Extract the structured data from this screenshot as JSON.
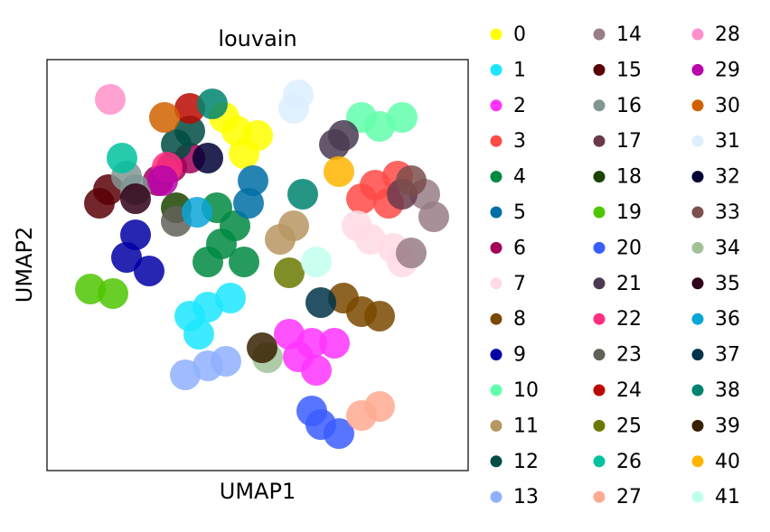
{
  "chart_data": {
    "type": "scatter",
    "title": "louvain",
    "x_label": "UMAP1",
    "y_label": "UMAP2",
    "xlim": [
      0,
      466
    ],
    "ylim": [
      0,
      455
    ],
    "series": [
      {
        "name": "0",
        "color": "#FFFF00",
        "x": [
          210,
          218,
          196,
          233
        ],
        "y": [
          376,
          351,
          391,
          371
        ]
      },
      {
        "name": "1",
        "color": "#1CE6FF",
        "x": [
          178,
          158,
          203,
          168
        ],
        "y": [
          181,
          171,
          191,
          151
        ]
      },
      {
        "name": "2",
        "color": "#FF34FF",
        "x": [
          293,
          278,
          318,
          298,
          268
        ],
        "y": [
          141,
          126,
          141,
          111,
          151
        ]
      },
      {
        "name": "3",
        "color": "#FF4A46",
        "x": [
          363,
          388,
          348,
          378
        ],
        "y": [
          316,
          326,
          301,
          296
        ]
      },
      {
        "name": "4",
        "color": "#008941",
        "x": [
          193,
          208,
          178,
          218,
          188
        ],
        "y": [
          251,
          271,
          231,
          231,
          291
        ]
      },
      {
        "name": "5",
        "color": "#006FA6",
        "x": [
          228,
          223
        ],
        "y": [
          321,
          296
        ]
      },
      {
        "name": "6",
        "color": "#A30059",
        "x": [
          138,
          158,
          123
        ],
        "y": [
          336,
          346,
          321
        ]
      },
      {
        "name": "7",
        "color": "#FFDBE5",
        "x": [
          358,
          383,
          343,
          393
        ],
        "y": [
          256,
          246,
          271,
          231
        ]
      },
      {
        "name": "8",
        "color": "#7A4900",
        "x": [
          348,
          368,
          328
        ],
        "y": [
          176,
          171,
          191
        ]
      },
      {
        "name": "9",
        "color": "#0000A6",
        "x": [
          98,
          88,
          113
        ],
        "y": [
          261,
          236,
          221
        ]
      },
      {
        "name": "10",
        "color": "#63FFAC",
        "x": [
          368,
          393,
          348
        ],
        "y": [
          381,
          391,
          391
        ]
      },
      {
        "name": "11",
        "color": "#B79762",
        "x": [
          273,
          258
        ],
        "y": [
          271,
          256
        ]
      },
      {
        "name": "12",
        "color": "#004D43",
        "x": [
          158,
          143
        ],
        "y": [
          376,
          361
        ]
      },
      {
        "name": "13",
        "color": "#8FB0FF",
        "x": [
          178,
          153,
          198
        ],
        "y": [
          116,
          106,
          121
        ]
      },
      {
        "name": "14",
        "color": "#997D87",
        "x": [
          418,
          428,
          403
        ],
        "y": [
          306,
          281,
          241
        ]
      },
      {
        "name": "15",
        "color": "#5A0007",
        "x": [
          68,
          58
        ],
        "y": [
          311,
          296
        ]
      },
      {
        "name": "16",
        "color": "#809693",
        "x": [
          98,
          88
        ],
        "y": [
          311,
          326
        ]
      },
      {
        "name": "17",
        "color": "#6A3A4C",
        "x": [
          393
        ],
        "y": [
          306
        ]
      },
      {
        "name": "18",
        "color": "#1B4400",
        "x": [
          143
        ],
        "y": [
          291
        ]
      },
      {
        "name": "19",
        "color": "#4FC601",
        "x": [
          48,
          73
        ],
        "y": [
          201,
          196
        ]
      },
      {
        "name": "20",
        "color": "#3B5DFF",
        "x": [
          303,
          293,
          323
        ],
        "y": [
          51,
          66,
          41
        ]
      },
      {
        "name": "21",
        "color": "#4A3B53",
        "x": [
          328,
          318
        ],
        "y": [
          371,
          361
        ]
      },
      {
        "name": "22",
        "color": "#FF2F80",
        "x": [
          133
        ],
        "y": [
          336
        ]
      },
      {
        "name": "23",
        "color": "#61615A",
        "x": [
          143
        ],
        "y": [
          276
        ]
      },
      {
        "name": "24",
        "color": "#BA0900",
        "x": [
          158
        ],
        "y": [
          401
        ]
      },
      {
        "name": "25",
        "color": "#6B7900",
        "x": [
          268
        ],
        "y": [
          219
        ]
      },
      {
        "name": "26",
        "color": "#00C2A0",
        "x": [
          83
        ],
        "y": [
          346
        ]
      },
      {
        "name": "27",
        "color": "#FFAA92",
        "x": [
          348,
          368
        ],
        "y": [
          61,
          71
        ]
      },
      {
        "name": "28",
        "color": "#FF90C9",
        "x": [
          70
        ],
        "y": [
          411
        ]
      },
      {
        "name": "29",
        "color": "#B903AA",
        "x": [
          128
        ],
        "y": [
          321
        ]
      },
      {
        "name": "30",
        "color": "#D16100",
        "x": [
          130
        ],
        "y": [
          391
        ]
      },
      {
        "name": "31",
        "color": "#DDEFFF",
        "x": [
          278,
          273
        ],
        "y": [
          416,
          401
        ]
      },
      {
        "name": "32",
        "color": "#000035",
        "x": [
          178
        ],
        "y": [
          346
        ]
      },
      {
        "name": "33",
        "color": "#7B4F4B",
        "x": [
          403
        ],
        "y": [
          321
        ]
      },
      {
        "name": "34",
        "color": "#A1C299",
        "x": [
          244
        ],
        "y": [
          125
        ]
      },
      {
        "name": "35",
        "color": "#300018",
        "x": [
          98
        ],
        "y": [
          301
        ]
      },
      {
        "name": "36",
        "color": "#0AA6D8",
        "x": [
          166
        ],
        "y": [
          286
        ]
      },
      {
        "name": "37",
        "color": "#013349",
        "x": [
          303
        ],
        "y": [
          186
        ]
      },
      {
        "name": "38",
        "color": "#00846F",
        "x": [
          183,
          283
        ],
        "y": [
          406,
          306
        ]
      },
      {
        "name": "39",
        "color": "#372101",
        "x": [
          238
        ],
        "y": [
          136
        ]
      },
      {
        "name": "40",
        "color": "#FFB500",
        "x": [
          323
        ],
        "y": [
          331
        ]
      },
      {
        "name": "41",
        "color": "#C2FFED",
        "x": [
          298
        ],
        "y": [
          231
        ]
      }
    ]
  }
}
